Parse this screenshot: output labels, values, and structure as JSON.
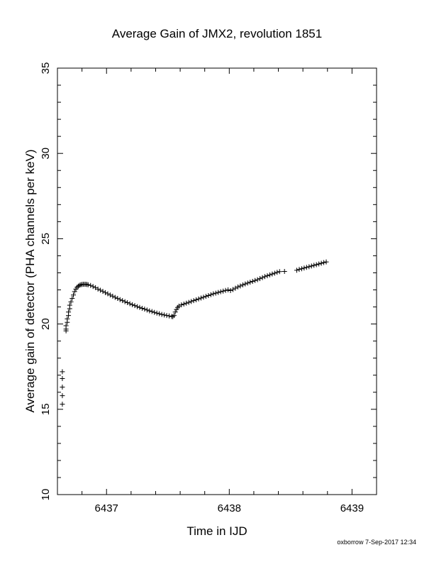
{
  "chart_data": {
    "type": "scatter",
    "title": "Average Gain of JMX2, revolution 1851",
    "xlabel": "Time in IJD",
    "ylabel": "Average gain of detector (PHA channels per keV)",
    "xlim": [
      6436.6,
      6439.2
    ],
    "ylim": [
      10,
      35
    ],
    "xticks": [
      6437,
      6438,
      6439
    ],
    "yticks": [
      10,
      15,
      20,
      25,
      30,
      35
    ],
    "grid": false,
    "marker": "plus",
    "footer": "oxborrow  7-Sep-2017 12:34",
    "series": [
      {
        "points": [
          [
            6436.64,
            15.3
          ],
          [
            6436.64,
            15.8
          ],
          [
            6436.64,
            16.3
          ],
          [
            6436.64,
            16.8
          ],
          [
            6436.64,
            17.2
          ],
          [
            6436.67,
            19.6
          ],
          [
            6436.67,
            19.7
          ],
          [
            6436.67,
            19.9
          ],
          [
            6436.68,
            20.1
          ],
          [
            6436.68,
            20.3
          ],
          [
            6436.69,
            20.5
          ],
          [
            6436.69,
            20.7
          ],
          [
            6436.7,
            20.9
          ],
          [
            6436.7,
            21.1
          ],
          [
            6436.71,
            21.3
          ],
          [
            6436.72,
            21.5
          ],
          [
            6436.73,
            21.7
          ],
          [
            6436.74,
            21.9
          ],
          [
            6436.75,
            22.05
          ],
          [
            6436.76,
            22.15
          ],
          [
            6436.77,
            22.22
          ],
          [
            6436.78,
            22.27
          ],
          [
            6436.79,
            22.3
          ],
          [
            6436.8,
            22.32
          ],
          [
            6436.81,
            22.33
          ],
          [
            6436.82,
            22.33
          ],
          [
            6436.83,
            22.33
          ],
          [
            6436.84,
            22.32
          ],
          [
            6436.85,
            22.3
          ],
          [
            6436.87,
            22.26
          ],
          [
            6436.89,
            22.2
          ],
          [
            6436.91,
            22.13
          ],
          [
            6436.93,
            22.05
          ],
          [
            6436.95,
            21.98
          ],
          [
            6436.97,
            21.91
          ],
          [
            6436.99,
            21.84
          ],
          [
            6437.01,
            21.77
          ],
          [
            6437.03,
            21.7
          ],
          [
            6437.05,
            21.63
          ],
          [
            6437.07,
            21.56
          ],
          [
            6437.09,
            21.5
          ],
          [
            6437.11,
            21.43
          ],
          [
            6437.13,
            21.37
          ],
          [
            6437.15,
            21.31
          ],
          [
            6437.17,
            21.25
          ],
          [
            6437.19,
            21.19
          ],
          [
            6437.21,
            21.13
          ],
          [
            6437.23,
            21.08
          ],
          [
            6437.25,
            21.02
          ],
          [
            6437.27,
            20.97
          ],
          [
            6437.29,
            20.92
          ],
          [
            6437.31,
            20.87
          ],
          [
            6437.33,
            20.82
          ],
          [
            6437.35,
            20.77
          ],
          [
            6437.37,
            20.73
          ],
          [
            6437.39,
            20.68
          ],
          [
            6437.41,
            20.64
          ],
          [
            6437.43,
            20.6
          ],
          [
            6437.45,
            20.56
          ],
          [
            6437.47,
            20.53
          ],
          [
            6437.49,
            20.5
          ],
          [
            6437.51,
            20.47
          ],
          [
            6437.53,
            20.44
          ],
          [
            6437.54,
            20.43
          ],
          [
            6437.55,
            20.5
          ],
          [
            6437.56,
            20.7
          ],
          [
            6437.57,
            20.85
          ],
          [
            6437.58,
            20.97
          ],
          [
            6437.59,
            21.05
          ],
          [
            6437.61,
            21.12
          ],
          [
            6437.63,
            21.17
          ],
          [
            6437.65,
            21.22
          ],
          [
            6437.67,
            21.27
          ],
          [
            6437.69,
            21.32
          ],
          [
            6437.71,
            21.37
          ],
          [
            6437.73,
            21.42
          ],
          [
            6437.75,
            21.47
          ],
          [
            6437.77,
            21.52
          ],
          [
            6437.79,
            21.57
          ],
          [
            6437.81,
            21.62
          ],
          [
            6437.83,
            21.67
          ],
          [
            6437.85,
            21.72
          ],
          [
            6437.87,
            21.77
          ],
          [
            6437.89,
            21.81
          ],
          [
            6437.91,
            21.85
          ],
          [
            6437.93,
            21.89
          ],
          [
            6437.95,
            21.93
          ],
          [
            6437.97,
            21.97
          ],
          [
            6437.99,
            22.0
          ],
          [
            6438.01,
            21.96
          ],
          [
            6438.03,
            22.02
          ],
          [
            6438.05,
            22.1
          ],
          [
            6438.07,
            22.17
          ],
          [
            6438.09,
            22.23
          ],
          [
            6438.11,
            22.29
          ],
          [
            6438.13,
            22.35
          ],
          [
            6438.15,
            22.4
          ],
          [
            6438.17,
            22.45
          ],
          [
            6438.19,
            22.5
          ],
          [
            6438.21,
            22.55
          ],
          [
            6438.23,
            22.6
          ],
          [
            6438.25,
            22.66
          ],
          [
            6438.27,
            22.72
          ],
          [
            6438.29,
            22.78
          ],
          [
            6438.31,
            22.83
          ],
          [
            6438.33,
            22.88
          ],
          [
            6438.35,
            22.93
          ],
          [
            6438.37,
            22.98
          ],
          [
            6438.39,
            23.03
          ],
          [
            6438.41,
            23.07
          ],
          [
            6438.45,
            23.08
          ],
          [
            6438.55,
            23.15
          ],
          [
            6438.57,
            23.2
          ],
          [
            6438.59,
            23.24
          ],
          [
            6438.61,
            23.28
          ],
          [
            6438.63,
            23.32
          ],
          [
            6438.65,
            23.36
          ],
          [
            6438.67,
            23.4
          ],
          [
            6438.69,
            23.44
          ],
          [
            6438.71,
            23.48
          ],
          [
            6438.73,
            23.52
          ],
          [
            6438.75,
            23.56
          ],
          [
            6438.77,
            23.6
          ],
          [
            6438.79,
            23.64
          ]
        ]
      }
    ]
  }
}
